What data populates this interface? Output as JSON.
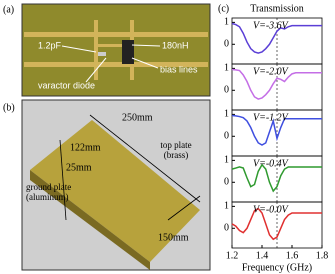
{
  "panel_a": {
    "label": "(a)",
    "capacitor": "1.2pF",
    "inductor": "180nH",
    "bias": "bias lines",
    "diode": "varactor diode"
  },
  "panel_b": {
    "label": "(b)",
    "length": "250mm",
    "width": "122mm",
    "height": "25mm",
    "top": "top plate",
    "top_material": "(brass)",
    "side": "150mm",
    "ground": "ground plate",
    "ground_material": "(aluminum)"
  },
  "panel_c": {
    "label": "(c)"
  },
  "chart_data": [
    {
      "type": "line",
      "title": "Transmission",
      "annotation": "V=-3.6V",
      "color": "#5b3fd6",
      "x": [
        1.2,
        1.225,
        1.25,
        1.275,
        1.3,
        1.325,
        1.35,
        1.375,
        1.4,
        1.425,
        1.45,
        1.475,
        1.5,
        1.525,
        1.55,
        1.575,
        1.6,
        1.625,
        1.65,
        1.675,
        1.7,
        1.725,
        1.75,
        1.775,
        1.8
      ],
      "values": [
        0.95,
        0.9,
        0.8,
        0.5,
        0.1,
        -0.2,
        -0.35,
        -0.4,
        -0.35,
        -0.2,
        0.0,
        0.3,
        0.6,
        0.75,
        0.7,
        0.8,
        0.85,
        0.85,
        0.85,
        0.85,
        0.85,
        0.85,
        0.85,
        0.85,
        0.85
      ],
      "xlim": [
        1.2,
        1.8
      ],
      "ylim": [
        -0.9,
        1.2
      ],
      "yticks": [
        0,
        1
      ],
      "vline": 1.5
    },
    {
      "type": "line",
      "annotation": "V=-2.0V",
      "color": "#c46ee6",
      "x": [
        1.2,
        1.225,
        1.25,
        1.275,
        1.3,
        1.325,
        1.35,
        1.375,
        1.4,
        1.425,
        1.45,
        1.475,
        1.5,
        1.525,
        1.55,
        1.575,
        1.6,
        1.625,
        1.65,
        1.675,
        1.7,
        1.725,
        1.75,
        1.775,
        1.8
      ],
      "values": [
        0.95,
        0.93,
        0.9,
        0.7,
        0.4,
        0.0,
        -0.3,
        -0.4,
        -0.35,
        -0.2,
        0.0,
        0.3,
        0.55,
        0.5,
        0.4,
        0.6,
        0.75,
        0.8,
        0.8,
        0.8,
        0.8,
        0.8,
        0.8,
        0.8,
        0.8
      ],
      "xlim": [
        1.2,
        1.8
      ],
      "ylim": [
        -0.9,
        1.2
      ],
      "yticks": [
        0,
        1
      ],
      "vline": 1.5
    },
    {
      "type": "line",
      "annotation": "V=-1.2V",
      "color": "#3f4fe0",
      "x": [
        1.2,
        1.225,
        1.25,
        1.275,
        1.3,
        1.325,
        1.35,
        1.375,
        1.4,
        1.425,
        1.45,
        1.475,
        1.5,
        1.525,
        1.55,
        1.575,
        1.6,
        1.625,
        1.65,
        1.675,
        1.7,
        1.725,
        1.75,
        1.775,
        1.8
      ],
      "values": [
        0.95,
        0.93,
        0.9,
        0.85,
        0.7,
        0.4,
        0.0,
        -0.3,
        -0.4,
        -0.3,
        0.2,
        0.7,
        -0.1,
        0.4,
        0.8,
        0.8,
        0.8,
        0.8,
        0.8,
        0.8,
        0.8,
        0.8,
        0.8,
        0.8,
        0.8
      ],
      "xlim": [
        1.2,
        1.8
      ],
      "ylim": [
        -0.9,
        1.2
      ],
      "yticks": [
        0,
        1
      ],
      "vline": 1.5
    },
    {
      "type": "line",
      "annotation": "V=-0.4V",
      "color": "#2f9a2f",
      "x": [
        1.2,
        1.225,
        1.25,
        1.275,
        1.3,
        1.325,
        1.35,
        1.375,
        1.4,
        1.425,
        1.45,
        1.475,
        1.5,
        1.525,
        1.55,
        1.575,
        1.6,
        1.625,
        1.65,
        1.675,
        1.7,
        1.725,
        1.75,
        1.775,
        1.8
      ],
      "values": [
        0.6,
        0.65,
        0.7,
        0.65,
        0.2,
        -0.2,
        -0.1,
        0.5,
        0.8,
        0.6,
        0.0,
        -0.4,
        -0.2,
        0.3,
        0.6,
        0.7,
        0.7,
        0.7,
        0.7,
        0.7,
        0.7,
        0.7,
        0.7,
        0.7,
        0.7
      ],
      "xlim": [
        1.2,
        1.8
      ],
      "ylim": [
        -0.9,
        1.2
      ],
      "yticks": [
        0,
        1
      ],
      "vline": 1.5
    },
    {
      "type": "line",
      "annotation": "V=-0.0V",
      "color": "#e03030",
      "xlabel": "Frequency (GHz)",
      "x": [
        1.2,
        1.225,
        1.25,
        1.275,
        1.3,
        1.325,
        1.35,
        1.375,
        1.4,
        1.425,
        1.45,
        1.475,
        1.5,
        1.525,
        1.55,
        1.575,
        1.6,
        1.625,
        1.65,
        1.675,
        1.7,
        1.725,
        1.75,
        1.775,
        1.8
      ],
      "values": [
        0.2,
        0.1,
        -0.1,
        -0.2,
        0.0,
        0.4,
        0.8,
        0.9,
        0.7,
        0.2,
        -0.3,
        -0.5,
        -0.4,
        0.0,
        0.4,
        0.6,
        0.7,
        0.7,
        0.7,
        0.7,
        0.7,
        0.7,
        0.7,
        0.7,
        0.7
      ],
      "xlim": [
        1.2,
        1.8
      ],
      "ylim": [
        -0.9,
        1.2
      ],
      "yticks": [
        0,
        1
      ],
      "xticks": [
        1.2,
        1.4,
        1.6,
        1.8
      ],
      "vline": 1.5
    }
  ]
}
